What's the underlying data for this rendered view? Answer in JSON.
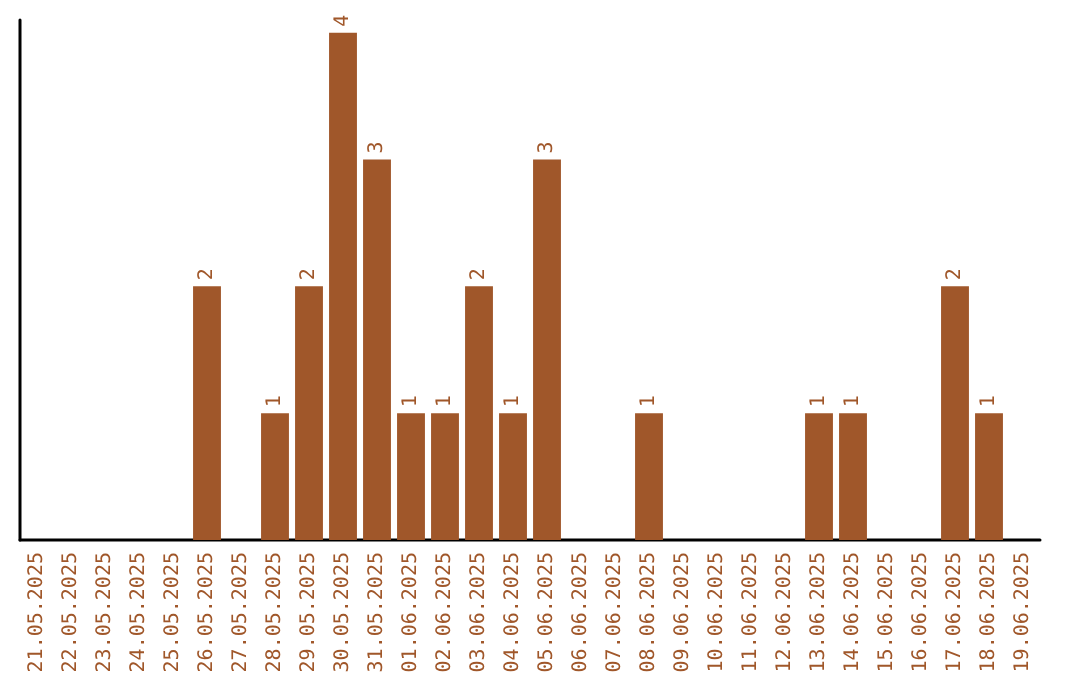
{
  "chart_data": {
    "type": "bar",
    "categories": [
      "21.05.2025",
      "22.05.2025",
      "23.05.2025",
      "24.05.2025",
      "25.05.2025",
      "26.05.2025",
      "27.05.2025",
      "28.05.2025",
      "29.05.2025",
      "30.05.2025",
      "31.05.2025",
      "01.06.2025",
      "02.06.2025",
      "03.06.2025",
      "04.06.2025",
      "05.06.2025",
      "06.06.2025",
      "07.06.2025",
      "08.06.2025",
      "09.06.2025",
      "10.06.2025",
      "11.06.2025",
      "12.06.2025",
      "13.06.2025",
      "14.06.2025",
      "15.06.2025",
      "16.06.2025",
      "17.06.2025",
      "18.06.2025",
      "19.06.2025"
    ],
    "values": [
      0,
      0,
      0,
      0,
      0,
      2,
      0,
      1,
      2,
      4,
      3,
      1,
      1,
      2,
      1,
      3,
      0,
      0,
      1,
      0,
      0,
      0,
      0,
      1,
      1,
      0,
      0,
      2,
      1,
      0
    ],
    "value_labels": [
      null,
      null,
      null,
      null,
      null,
      "2",
      null,
      "1",
      "2",
      "4",
      "3",
      "1",
      "1",
      "2",
      "1",
      "3",
      null,
      null,
      "1",
      null,
      null,
      null,
      null,
      "1",
      "1",
      null,
      null,
      "2",
      "1",
      null
    ],
    "color": "#a0572a",
    "ylim": [
      0,
      4.1
    ],
    "tick_labels": "x",
    "grid": false
  }
}
